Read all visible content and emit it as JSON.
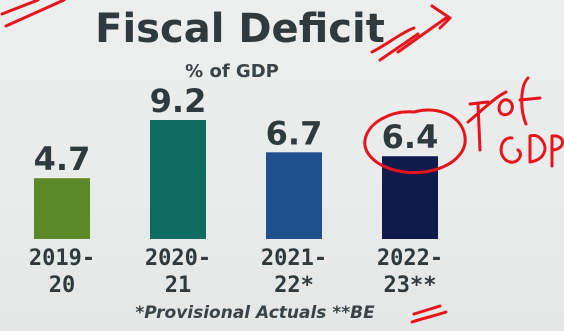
{
  "chart_data": {
    "type": "bar",
    "title": "Fiscal Deficit",
    "subtitle": "% of GDP",
    "categories": [
      {
        "line1": "2019-",
        "line2": "20"
      },
      {
        "line1": "2020-",
        "line2": "21"
      },
      {
        "line1": "2021-",
        "line2": "22*"
      },
      {
        "line1": "2022-",
        "line2": "23**"
      }
    ],
    "values": [
      4.7,
      9.2,
      6.7,
      6.4
    ],
    "value_labels": [
      "4.7",
      "9.2",
      "6.7",
      "6.4"
    ],
    "bar_colors": [
      "#5c8a2a",
      "#0e6b62",
      "#1f4f8c",
      "#0f1b4a"
    ],
    "footnote": "*Provisional Actuals **BE",
    "ylim": [
      0,
      9.2
    ],
    "grid": false
  },
  "annotation": {
    "handwritten_text": "1% of GDP",
    "ink_color": "#e8141c"
  }
}
